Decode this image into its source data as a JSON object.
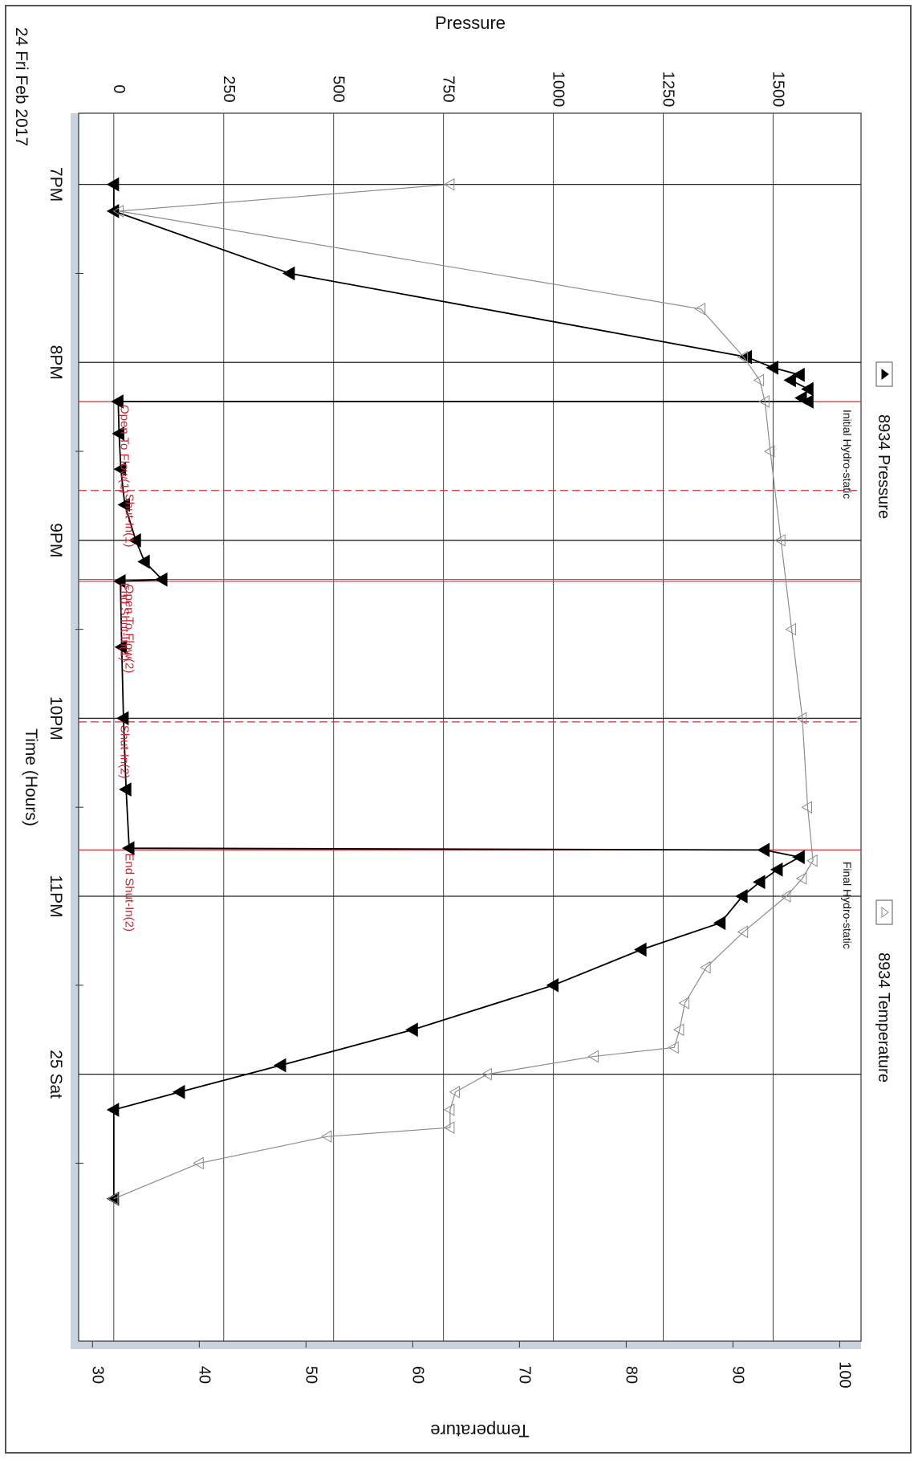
{
  "chart_data": {
    "type": "line",
    "orientation": "rotated 90 degrees clockwise",
    "date_label": "24 Fri Feb 2017",
    "xlabel": "Time (Hours)",
    "x_tick_labels": [
      "7PM",
      "8PM",
      "9PM",
      "10PM",
      "11PM",
      "25 Sat"
    ],
    "x_ticks_hours": [
      19,
      20,
      21,
      22,
      23,
      24
    ],
    "xlim_hours": [
      18.6,
      25.5
    ],
    "y_left_label": "Pressure",
    "y_left_ticks": [
      0,
      250,
      500,
      750,
      1000,
      1250,
      1500
    ],
    "y_left_lim": [
      -80,
      1700
    ],
    "y_right_label": "Temperature",
    "y_right_ticks": [
      30,
      40,
      50,
      60,
      70,
      80,
      90,
      100
    ],
    "y_right_lim": [
      28.7,
      102
    ],
    "grid": true,
    "legend_position": "top (left of rotated chart)",
    "series": [
      {
        "name": "8934 Pressure",
        "axis": "pressure",
        "color": "#000000",
        "marker": "filled-triangle",
        "points": [
          [
            19.0,
            0
          ],
          [
            19.15,
            0
          ],
          [
            19.5,
            400
          ],
          [
            19.97,
            1440
          ],
          [
            20.03,
            1500
          ],
          [
            20.07,
            1560
          ],
          [
            20.1,
            1540
          ],
          [
            20.15,
            1580
          ],
          [
            20.2,
            1565
          ],
          [
            20.22,
            1580
          ],
          [
            20.22,
            10
          ],
          [
            20.4,
            12
          ],
          [
            20.6,
            16
          ],
          [
            20.8,
            25
          ],
          [
            21.0,
            50
          ],
          [
            21.12,
            70
          ],
          [
            21.22,
            110
          ],
          [
            21.23,
            15
          ],
          [
            21.6,
            18
          ],
          [
            22.0,
            22
          ],
          [
            22.4,
            28
          ],
          [
            22.73,
            35
          ],
          [
            22.74,
            1480
          ],
          [
            22.78,
            1560
          ],
          [
            22.85,
            1510
          ],
          [
            22.92,
            1470
          ],
          [
            23.0,
            1430
          ],
          [
            23.15,
            1380
          ],
          [
            23.3,
            1200
          ],
          [
            23.5,
            1000
          ],
          [
            23.75,
            680
          ],
          [
            23.95,
            380
          ],
          [
            24.1,
            150
          ],
          [
            24.2,
            0
          ],
          [
            24.7,
            0
          ]
        ]
      },
      {
        "name": "8934 Temperature",
        "axis": "temperature",
        "color": "#8c8c8c",
        "marker": "open-triangle",
        "points": [
          [
            19.0,
            63.5
          ],
          [
            19.15,
            32.5
          ],
          [
            19.7,
            87
          ],
          [
            19.97,
            91
          ],
          [
            20.1,
            92.5
          ],
          [
            20.22,
            93
          ],
          [
            20.5,
            93.5
          ],
          [
            21.0,
            94.5
          ],
          [
            21.5,
            95.5
          ],
          [
            22.0,
            96.5
          ],
          [
            22.5,
            97
          ],
          [
            22.8,
            97.5
          ],
          [
            22.9,
            96.5
          ],
          [
            23.0,
            95
          ],
          [
            23.2,
            91
          ],
          [
            23.4,
            87.5
          ],
          [
            23.6,
            85.5
          ],
          [
            23.75,
            85
          ],
          [
            23.85,
            84.5
          ],
          [
            23.9,
            77
          ],
          [
            24.0,
            67
          ],
          [
            24.1,
            64
          ],
          [
            24.2,
            63.5
          ],
          [
            24.3,
            63.5
          ],
          [
            24.35,
            52
          ],
          [
            24.5,
            40
          ],
          [
            24.7,
            32
          ]
        ]
      }
    ],
    "event_markers": [
      {
        "t": 20.22,
        "label": "Open To Flow(1)",
        "color": "#cc3333",
        "style": "solid"
      },
      {
        "t": 20.72,
        "label": "Shut-In(1)",
        "color": "#cc3333",
        "style": "dashed"
      },
      {
        "t": 21.22,
        "label": "End Shut-In(1)",
        "color": "#e8336b",
        "style": "solid"
      },
      {
        "t": 21.23,
        "label": "Open To Flow(2)",
        "color": "#cc3333",
        "style": "solid"
      },
      {
        "t": 22.02,
        "label": "Shut-In(2)",
        "color": "#cc3333",
        "style": "dashed"
      },
      {
        "t": 22.74,
        "label": "End Shut-In(2)",
        "color": "#cc3333",
        "style": "solid"
      }
    ],
    "annotations": [
      {
        "t": 20.22,
        "pressure": 1560,
        "label": "Initial Hydro-static"
      },
      {
        "t": 22.76,
        "pressure": 1560,
        "label": "Final Hydro-static"
      }
    ]
  }
}
